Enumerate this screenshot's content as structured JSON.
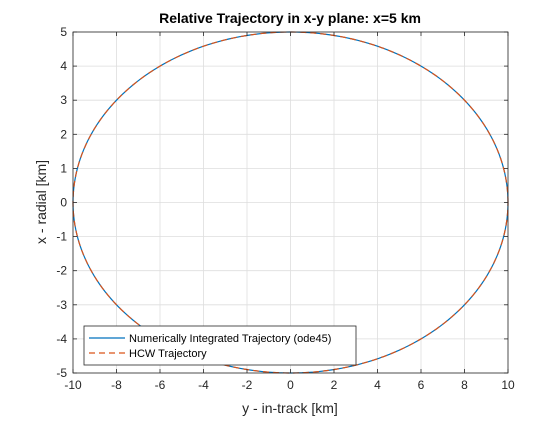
{
  "chart_data": {
    "type": "line",
    "title": "Relative Trajectory in x-y plane: x=5 km",
    "xlabel": "y - in-track [km]",
    "ylabel": "x - radial [km]",
    "xlim": [
      -10,
      10
    ],
    "ylim": [
      -5,
      5
    ],
    "xticks": [
      -10,
      -8,
      -6,
      -4,
      -2,
      0,
      2,
      4,
      6,
      8,
      10
    ],
    "yticks": [
      -5,
      -4,
      -3,
      -2,
      -1,
      0,
      1,
      2,
      3,
      4,
      5
    ],
    "grid": true,
    "legend_position": "bottom-left",
    "series": [
      {
        "name": "Numerically Integrated Trajectory (ode45)",
        "color": "#0072BD",
        "style": "solid",
        "shape": "ellipse",
        "center": [
          0,
          0
        ],
        "semi_axis_y": 10,
        "semi_axis_x": 5
      },
      {
        "name": "HCW Trajectory",
        "color": "#D95319",
        "style": "dashed",
        "shape": "ellipse",
        "center": [
          0,
          0
        ],
        "semi_axis_y": 10,
        "semi_axis_x": 5
      }
    ]
  }
}
